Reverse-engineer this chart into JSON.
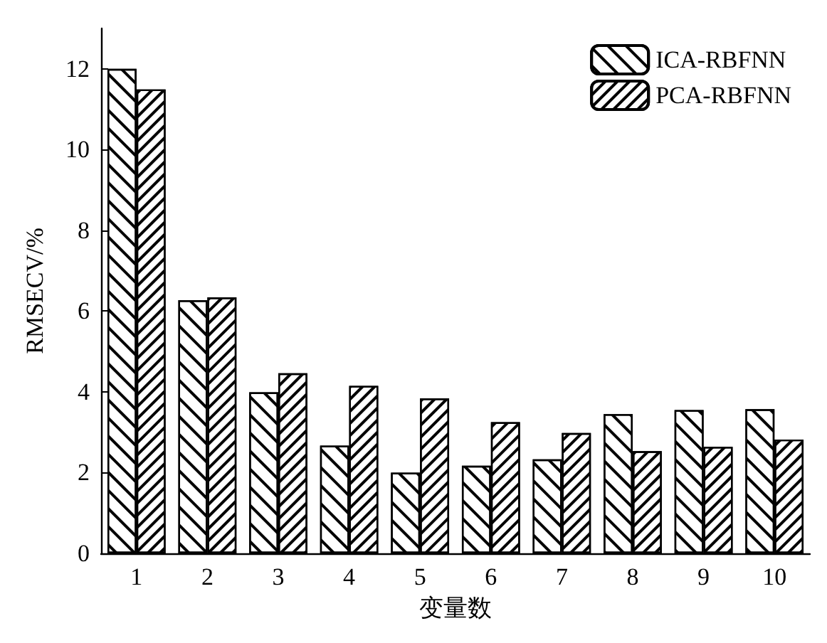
{
  "chart_data": {
    "type": "bar",
    "xlabel": "变量数",
    "ylabel": "RMSECV/%",
    "categories": [
      "1",
      "2",
      "3",
      "4",
      "5",
      "6",
      "7",
      "8",
      "9",
      "10"
    ],
    "series": [
      {
        "name": "ICA-RBFNN",
        "color": "#ffffff",
        "values": [
          12.0,
          6.27,
          3.99,
          2.67,
          2.0,
          2.17,
          2.33,
          3.45,
          3.55,
          3.57
        ]
      },
      {
        "name": "PCA-RBFNN",
        "color": "#ffffff",
        "values": [
          11.49,
          6.34,
          4.46,
          4.15,
          3.84,
          3.25,
          2.98,
          2.53,
          2.64,
          2.82
        ]
      }
    ],
    "ylim": [
      0,
      13
    ],
    "yticks": [
      0,
      2,
      4,
      6,
      8,
      10,
      12
    ],
    "grid": false,
    "legend": "top right"
  }
}
